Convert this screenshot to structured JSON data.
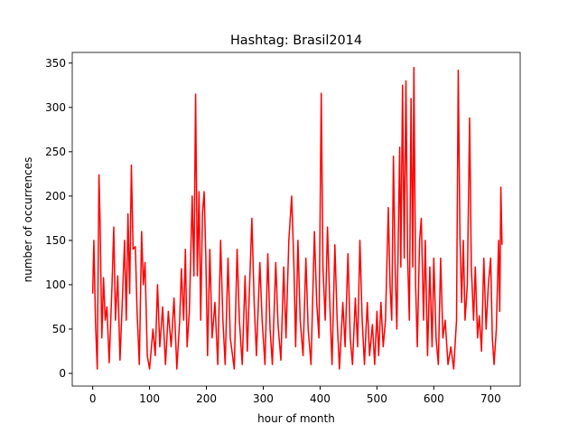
{
  "chart_data": {
    "type": "line",
    "title": "Hashtag: Brasil2014",
    "x_label": "hour of month",
    "y_label": "number of occurrences",
    "x": [
      0,
      2,
      5,
      8,
      11,
      13,
      16,
      19,
      22,
      25,
      29,
      34,
      37,
      40,
      44,
      48,
      52,
      56,
      59,
      62,
      65,
      68,
      71,
      75,
      78,
      82,
      86,
      89,
      92,
      96,
      100,
      106,
      110,
      114,
      118,
      123,
      128,
      133,
      138,
      143,
      148,
      153,
      156,
      160,
      163,
      166,
      170,
      175,
      178,
      181,
      184,
      187,
      190,
      193,
      196,
      199,
      202,
      206,
      210,
      215,
      220,
      225,
      229,
      233,
      238,
      242,
      249,
      254,
      258,
      263,
      268,
      272,
      276,
      280,
      284,
      288,
      294,
      298,
      303,
      308,
      312,
      316,
      322,
      326,
      331,
      336,
      340,
      345,
      350,
      354,
      357,
      361,
      365,
      370,
      375,
      379,
      384,
      390,
      394,
      398,
      402,
      405,
      409,
      413,
      417,
      421,
      426,
      430,
      434,
      440,
      444,
      449,
      453,
      457,
      462,
      466,
      470,
      474,
      478,
      483,
      487,
      492,
      496,
      500,
      503,
      507,
      511,
      515,
      520,
      523,
      526,
      529,
      532,
      535,
      540,
      542,
      545,
      548,
      551,
      554,
      557,
      560,
      563,
      565,
      568,
      571,
      575,
      578,
      582,
      585,
      589,
      593,
      597,
      600,
      604,
      608,
      612,
      616,
      620,
      625,
      630,
      635,
      640,
      643,
      646,
      649,
      652,
      655,
      659,
      663,
      666,
      670,
      673,
      677,
      680,
      684,
      688,
      692,
      696,
      700,
      703,
      706,
      710,
      714,
      716,
      718,
      720
    ],
    "series": [
      {
        "name": "Brasil2014",
        "color": "#ff0000",
        "values": [
          90,
          150,
          55,
          5,
          224,
          170,
          40,
          108,
          60,
          75,
          12,
          100,
          165,
          60,
          110,
          15,
          80,
          150,
          60,
          180,
          90,
          235,
          140,
          143,
          70,
          10,
          160,
          100,
          125,
          20,
          5,
          50,
          20,
          100,
          30,
          75,
          10,
          70,
          30,
          85,
          5,
          60,
          118,
          60,
          140,
          30,
          70,
          200,
          110,
          315,
          110,
          205,
          60,
          180,
          205,
          130,
          20,
          140,
          40,
          80,
          10,
          150,
          60,
          10,
          130,
          40,
          5,
          140,
          60,
          10,
          110,
          25,
          100,
          175,
          80,
          20,
          125,
          60,
          10,
          135,
          50,
          10,
          125,
          55,
          15,
          120,
          40,
          150,
          200,
          120,
          30,
          150,
          60,
          20,
          130,
          50,
          10,
          160,
          80,
          40,
          316,
          120,
          60,
          165,
          80,
          10,
          145,
          60,
          5,
          80,
          30,
          135,
          40,
          10,
          85,
          30,
          150,
          60,
          10,
          80,
          20,
          55,
          10,
          70,
          20,
          80,
          30,
          60,
          187,
          100,
          60,
          245,
          120,
          50,
          255,
          120,
          325,
          130,
          330,
          130,
          60,
          310,
          120,
          345,
          100,
          30,
          150,
          175,
          60,
          150,
          20,
          120,
          30,
          130,
          40,
          10,
          130,
          40,
          60,
          10,
          30,
          5,
          60,
          342,
          155,
          80,
          150,
          60,
          100,
          288,
          120,
          60,
          120,
          40,
          65,
          25,
          130,
          50,
          100,
          130,
          40,
          10,
          50,
          150,
          70,
          210,
          145
        ]
      }
    ],
    "xlim": [
      -36,
      752
    ],
    "ylim": [
      -14.3,
      362
    ],
    "xticks": [
      0,
      100,
      200,
      300,
      400,
      500,
      600,
      700
    ],
    "yticks": [
      0,
      50,
      100,
      150,
      200,
      250,
      300,
      350
    ]
  }
}
